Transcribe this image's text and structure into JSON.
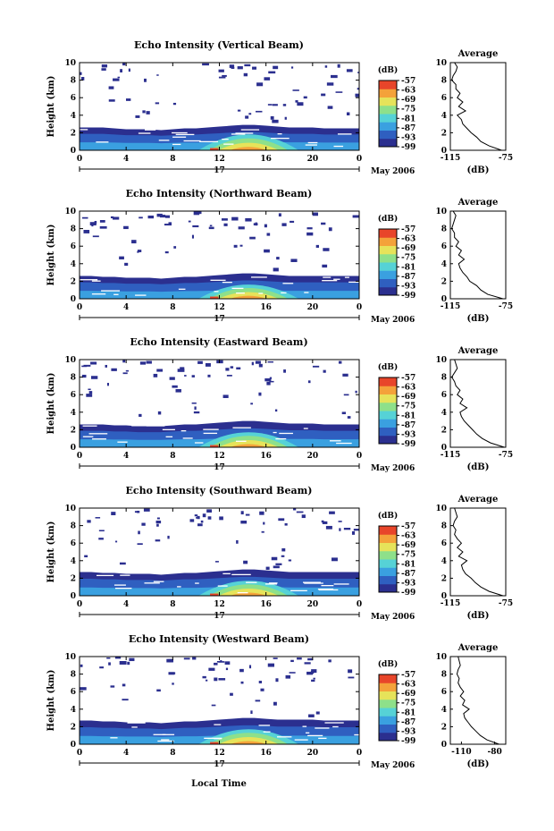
{
  "figure": {
    "x_axis_title": "Local Time",
    "day_label": "17",
    "month_label": "May 2006",
    "cbar_unit": "(dB)",
    "avg_title": "Average",
    "avg_xunit": "(dB)",
    "colors": {
      "colormap": [
        "#2b2f8f",
        "#2f5fc0",
        "#3aa0e0",
        "#56d2d6",
        "#8ee08a",
        "#e6e35a",
        "#f4a23a",
        "#e8452a"
      ],
      "background": "#ffffff",
      "sparse_echo": "#2b2f8f"
    }
  },
  "chart_data": [
    {
      "type": "heatmap",
      "title": "Echo Intensity (Vertical Beam)",
      "ylabel": "Height (km)",
      "xlim": [
        0,
        24
      ],
      "ylim": [
        0,
        10
      ],
      "xticks": [
        "0",
        "4",
        "8",
        "12",
        "16",
        "20",
        "0"
      ],
      "yticks": [
        "0",
        "2",
        "4",
        "6",
        "8",
        "10"
      ],
      "colorbar_ticks": [
        "-57",
        "-63",
        "-69",
        "-75",
        "-81",
        "-87",
        "-93",
        "-99"
      ],
      "clim": [
        -99,
        -57
      ],
      "layer_top_km": [
        2.6,
        2.6,
        2.6,
        2.5,
        2.4,
        2.4,
        2.4,
        2.3,
        2.4,
        2.5,
        2.5,
        2.6,
        2.7,
        2.8,
        2.9,
        2.9,
        2.8,
        2.7,
        2.6,
        2.6,
        2.6,
        2.5,
        2.5,
        2.5,
        2.5
      ],
      "plume_center_hour": 14.5,
      "plume_peak_km": 1.9,
      "profile": {
        "xlim": [
          -115,
          -75
        ],
        "xticks": [
          "-115",
          "-75"
        ],
        "ylim": [
          0,
          10
        ],
        "yticks": [
          "0",
          "2",
          "4",
          "6",
          "8",
          "10"
        ],
        "height_km": [
          0,
          0.5,
          1,
          1.5,
          2,
          2.5,
          3,
          3.5,
          4,
          4.5,
          5,
          5.5,
          6,
          6.5,
          7,
          7.5,
          8,
          8.5,
          9,
          9.5,
          10
        ],
        "value_db": [
          -78,
          -87,
          -93,
          -96,
          -100,
          -103,
          -106,
          -107,
          -110,
          -104,
          -109,
          -106,
          -110,
          -108,
          -111,
          -111,
          -114,
          -113,
          -111,
          -110,
          -112
        ]
      }
    },
    {
      "type": "heatmap",
      "title": "Echo Intensity (Northward Beam)",
      "ylabel": "Height (km)",
      "xlim": [
        0,
        24
      ],
      "ylim": [
        0,
        10
      ],
      "xticks": [
        "0",
        "4",
        "8",
        "12",
        "16",
        "20",
        "0"
      ],
      "yticks": [
        "0",
        "2",
        "4",
        "6",
        "8",
        "10"
      ],
      "colorbar_ticks": [
        "-57",
        "-63",
        "-69",
        "-75",
        "-81",
        "-87",
        "-93",
        "-99"
      ],
      "clim": [
        -99,
        -57
      ],
      "layer_top_km": [
        2.6,
        2.6,
        2.5,
        2.5,
        2.4,
        2.4,
        2.4,
        2.3,
        2.4,
        2.5,
        2.5,
        2.6,
        2.7,
        2.8,
        2.9,
        2.9,
        2.8,
        2.7,
        2.6,
        2.6,
        2.6,
        2.6,
        2.6,
        2.6,
        2.6
      ],
      "plume_center_hour": 14.5,
      "plume_peak_km": 1.7,
      "profile": {
        "xlim": [
          -115,
          -75
        ],
        "xticks": [
          "-115",
          "-75"
        ],
        "ylim": [
          0,
          10
        ],
        "yticks": [
          "0",
          "2",
          "4",
          "6",
          "8",
          "10"
        ],
        "height_km": [
          0,
          0.5,
          1,
          1.5,
          2,
          2.5,
          3,
          3.5,
          4,
          4.5,
          5,
          5.5,
          6,
          6.5,
          7,
          7.5,
          8,
          8.5,
          9,
          9.5,
          10
        ],
        "value_db": [
          -77,
          -88,
          -93,
          -96,
          -101,
          -103,
          -106,
          -108,
          -109,
          -105,
          -109,
          -107,
          -111,
          -109,
          -112,
          -112,
          -114,
          -113,
          -112,
          -111,
          -113
        ]
      }
    },
    {
      "type": "heatmap",
      "title": "Echo Intensity (Eastward Beam)",
      "ylabel": "Height (km)",
      "xlim": [
        0,
        24
      ],
      "ylim": [
        0,
        10
      ],
      "xticks": [
        "0",
        "4",
        "8",
        "12",
        "16",
        "20",
        "0"
      ],
      "yticks": [
        "0",
        "2",
        "4",
        "6",
        "8",
        "10"
      ],
      "colorbar_ticks": [
        "-57",
        "-63",
        "-69",
        "-75",
        "-81",
        "-87",
        "-93",
        "-99"
      ],
      "clim": [
        -99,
        -57
      ],
      "layer_top_km": [
        2.6,
        2.6,
        2.6,
        2.5,
        2.5,
        2.4,
        2.4,
        2.4,
        2.5,
        2.6,
        2.6,
        2.7,
        2.8,
        2.9,
        3.0,
        3.0,
        2.9,
        2.8,
        2.7,
        2.7,
        2.7,
        2.6,
        2.6,
        2.6,
        2.6
      ],
      "plume_center_hour": 14.5,
      "plume_peak_km": 1.8,
      "profile": {
        "xlim": [
          -115,
          -75
        ],
        "xticks": [
          "-115",
          "-75"
        ],
        "ylim": [
          0,
          10
        ],
        "yticks": [
          "0",
          "2",
          "4",
          "6",
          "8",
          "10"
        ],
        "height_km": [
          0,
          0.5,
          1,
          1.5,
          2,
          2.5,
          3,
          3.5,
          4,
          4.5,
          5,
          5.5,
          6,
          6.5,
          7,
          7.5,
          8,
          8.5,
          9,
          9.5,
          10
        ],
        "value_db": [
          -76,
          -86,
          -92,
          -96,
          -99,
          -102,
          -105,
          -107,
          -108,
          -103,
          -108,
          -106,
          -110,
          -108,
          -111,
          -112,
          -114,
          -112,
          -110,
          -111,
          -112
        ]
      }
    },
    {
      "type": "heatmap",
      "title": "Echo Intensity (Southward Beam)",
      "ylabel": "Height (km)",
      "xlim": [
        0,
        24
      ],
      "ylim": [
        0,
        10
      ],
      "xticks": [
        "0",
        "4",
        "8",
        "12",
        "16",
        "20",
        "0"
      ],
      "yticks": [
        "0",
        "2",
        "4",
        "6",
        "8",
        "10"
      ],
      "colorbar_ticks": [
        "-57",
        "-63",
        "-69",
        "-75",
        "-81",
        "-87",
        "-93",
        "-99"
      ],
      "clim": [
        -99,
        -57
      ],
      "layer_top_km": [
        2.7,
        2.7,
        2.6,
        2.6,
        2.5,
        2.5,
        2.5,
        2.4,
        2.5,
        2.6,
        2.6,
        2.7,
        2.8,
        2.9,
        3.0,
        3.0,
        2.9,
        2.8,
        2.7,
        2.7,
        2.7,
        2.7,
        2.7,
        2.7,
        2.7
      ],
      "plume_center_hour": 14.5,
      "plume_peak_km": 1.8,
      "profile": {
        "xlim": [
          -115,
          -75
        ],
        "xticks": [
          "-115",
          "-75"
        ],
        "ylim": [
          0,
          10
        ],
        "yticks": [
          "0",
          "2",
          "4",
          "6",
          "8",
          "10"
        ],
        "height_km": [
          0,
          0.5,
          1,
          1.5,
          2,
          2.5,
          3,
          3.5,
          4,
          4.5,
          5,
          5.5,
          6,
          6.5,
          7,
          7.5,
          8,
          8.5,
          9,
          9.5,
          10
        ],
        "value_db": [
          -77,
          -87,
          -93,
          -97,
          -100,
          -104,
          -106,
          -107,
          -103,
          -109,
          -106,
          -110,
          -107,
          -110,
          -112,
          -111,
          -113,
          -112,
          -110,
          -111,
          -112
        ]
      }
    },
    {
      "type": "heatmap",
      "title": "Echo Intensity (Westward Beam)",
      "ylabel": "Height (km)",
      "xlim": [
        0,
        24
      ],
      "ylim": [
        0,
        10
      ],
      "xticks": [
        "0",
        "4",
        "8",
        "12",
        "16",
        "20",
        "0"
      ],
      "yticks": [
        "0",
        "2",
        "4",
        "6",
        "8",
        "10"
      ],
      "colorbar_ticks": [
        "-57",
        "-63",
        "-69",
        "-75",
        "-81",
        "-87",
        "-93",
        "-99"
      ],
      "clim": [
        -99,
        -57
      ],
      "layer_top_km": [
        2.7,
        2.7,
        2.6,
        2.6,
        2.5,
        2.5,
        2.5,
        2.4,
        2.5,
        2.6,
        2.6,
        2.7,
        2.8,
        2.9,
        3.0,
        3.0,
        2.9,
        2.8,
        2.8,
        2.8,
        2.8,
        2.7,
        2.7,
        2.7,
        2.7
      ],
      "plume_center_hour": 14.5,
      "plume_peak_km": 1.8,
      "profile": {
        "xlim": [
          -120,
          -70
        ],
        "xticks": [
          "-110",
          "-80"
        ],
        "ylim": [
          0,
          10
        ],
        "yticks": [
          "0",
          "2",
          "4",
          "6",
          "8",
          "10"
        ],
        "height_km": [
          0,
          0.5,
          1,
          1.5,
          2,
          2.5,
          3,
          3.5,
          4,
          4.5,
          5,
          5.5,
          6,
          6.5,
          7,
          7.5,
          8,
          8.5,
          9,
          9.5,
          10
        ],
        "value_db": [
          -76,
          -87,
          -93,
          -97,
          -101,
          -104,
          -107,
          -108,
          -103,
          -109,
          -107,
          -111,
          -108,
          -111,
          -113,
          -112,
          -114,
          -113,
          -111,
          -112,
          -113
        ]
      }
    }
  ]
}
